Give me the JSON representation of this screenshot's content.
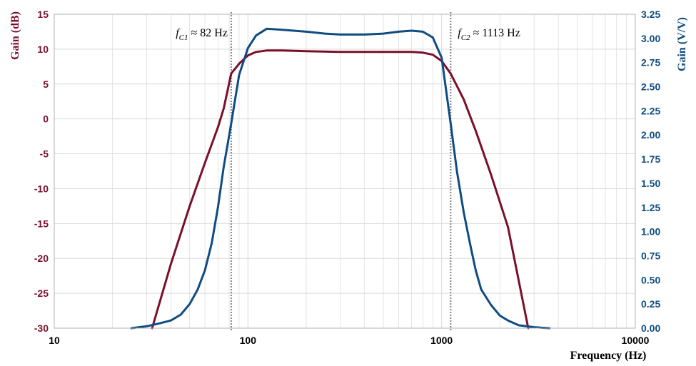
{
  "chart_data": {
    "type": "line",
    "xlabel": "Frequency (Hz)",
    "ylabel_left": "Gain (dB)",
    "ylabel_right": "Gain (V/V)",
    "x_scale": "log",
    "xlim": [
      10,
      10000
    ],
    "ylim_left": [
      -30,
      15
    ],
    "ylim_right": [
      0,
      3.25
    ],
    "grid": true,
    "x_ticks": [
      "10",
      "100",
      "1000",
      "10000"
    ],
    "y_left_ticks": [
      "15",
      "10",
      "5",
      "0",
      "-5",
      "-10",
      "-15",
      "-20",
      "-25",
      "-30"
    ],
    "y_right_ticks": [
      "3.25",
      "3.00",
      "2.75",
      "2.50",
      "2.25",
      "2.00",
      "1.75",
      "1.50",
      "1.25",
      "1.00",
      "0.75",
      "0.50",
      "0.25",
      "0.00"
    ],
    "colors": {
      "db": "#7a0f2b",
      "vv": "#0f4c81",
      "grid": "#d9d9d9",
      "marker": "#8c8c8c"
    },
    "series": [
      {
        "axis": "left",
        "color": "#7a0f2b",
        "points": [
          [
            32,
            -30
          ],
          [
            40,
            -20.8
          ],
          [
            50,
            -12.5
          ],
          [
            60,
            -6.3
          ],
          [
            70,
            -1.2
          ],
          [
            75,
            1.5
          ],
          [
            82,
            6.5
          ],
          [
            90,
            7.9
          ],
          [
            100,
            9.1
          ],
          [
            110,
            9.6
          ],
          [
            125,
            9.8
          ],
          [
            150,
            9.8
          ],
          [
            200,
            9.7
          ],
          [
            300,
            9.6
          ],
          [
            400,
            9.6
          ],
          [
            500,
            9.6
          ],
          [
            600,
            9.6
          ],
          [
            700,
            9.6
          ],
          [
            800,
            9.5
          ],
          [
            900,
            9.2
          ],
          [
            1000,
            8.3
          ],
          [
            1113,
            6.5
          ],
          [
            1300,
            2.8
          ],
          [
            1500,
            -1.7
          ],
          [
            1800,
            -8.0
          ],
          [
            2200,
            -15.5
          ],
          [
            2800,
            -30
          ]
        ]
      },
      {
        "axis": "right",
        "color": "#0f4c81",
        "points": [
          [
            25,
            0.0
          ],
          [
            30,
            0.02
          ],
          [
            35,
            0.05
          ],
          [
            40,
            0.08
          ],
          [
            45,
            0.14
          ],
          [
            50,
            0.25
          ],
          [
            55,
            0.4
          ],
          [
            60,
            0.6
          ],
          [
            65,
            0.88
          ],
          [
            70,
            1.25
          ],
          [
            75,
            1.67
          ],
          [
            82,
            2.12
          ],
          [
            90,
            2.62
          ],
          [
            100,
            2.9
          ],
          [
            110,
            3.03
          ],
          [
            125,
            3.1
          ],
          [
            150,
            3.09
          ],
          [
            200,
            3.07
          ],
          [
            250,
            3.05
          ],
          [
            300,
            3.04
          ],
          [
            400,
            3.04
          ],
          [
            500,
            3.05
          ],
          [
            600,
            3.07
          ],
          [
            700,
            3.08
          ],
          [
            800,
            3.07
          ],
          [
            900,
            3.01
          ],
          [
            1000,
            2.8
          ],
          [
            1113,
            2.12
          ],
          [
            1200,
            1.62
          ],
          [
            1300,
            1.2
          ],
          [
            1400,
            0.88
          ],
          [
            1500,
            0.6
          ],
          [
            1600,
            0.4
          ],
          [
            1800,
            0.24
          ],
          [
            2000,
            0.13
          ],
          [
            2200,
            0.08
          ],
          [
            2500,
            0.03
          ],
          [
            3000,
            0.01
          ],
          [
            3600,
            0.0
          ]
        ]
      }
    ],
    "annotations": [
      {
        "x": 82,
        "symbol": "f",
        "subscript": "C1",
        "text": " ≈ 82 Hz"
      },
      {
        "x": 1113,
        "symbol": "f",
        "subscript": "C2",
        "text": " ≈ 1113 Hz"
      }
    ]
  }
}
